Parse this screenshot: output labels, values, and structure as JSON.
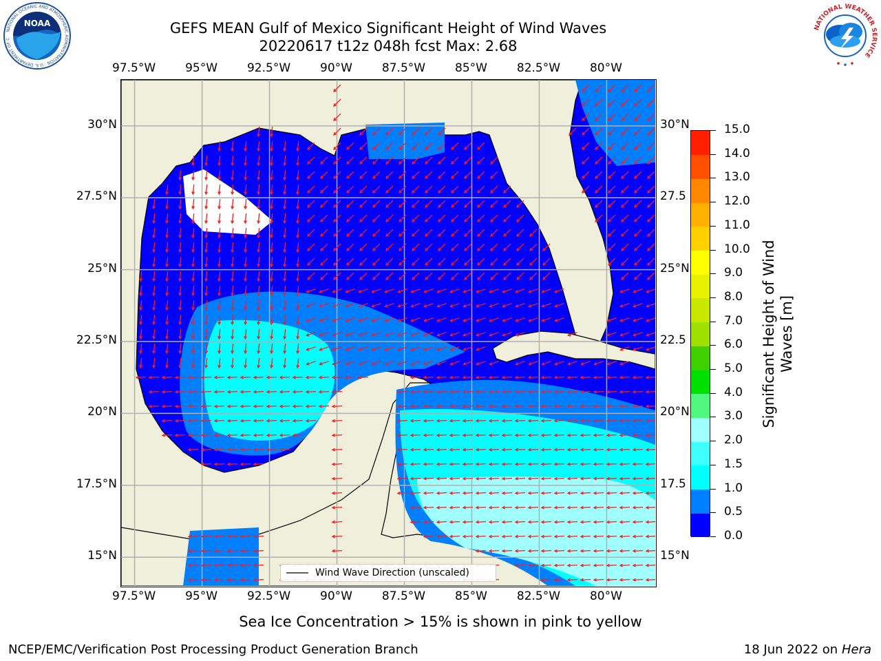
{
  "title": {
    "line1": "GEFS MEAN Gulf of Mexico Significant Height of Wind Waves",
    "line2": "20220617 t12z 048h fcst   Max: 2.68"
  },
  "logos": {
    "left": {
      "name": "noaa-logo",
      "text": "NOAA",
      "ring_text": "NATIONAL OCEANIC AND ATMOSPHERIC ADMINISTRATION · U.S. DEPARTMENT OF COMMERCE"
    },
    "right": {
      "name": "nws-logo",
      "ring_text": "NATIONAL WEATHER SERVICE"
    }
  },
  "map": {
    "lon_ticks": [
      "97.5°W",
      "95°W",
      "92.5°W",
      "90°W",
      "87.5°W",
      "85°W",
      "82.5°W",
      "80°W"
    ],
    "lon_values": [
      -97.5,
      -95,
      -92.5,
      -90,
      -87.5,
      -85,
      -82.5,
      -80
    ],
    "lat_ticks_left": [
      "30°N",
      "27.5°N",
      "25°N",
      "22.5°N",
      "20°N",
      "17.5°N",
      "15°N"
    ],
    "lat_ticks_right": [
      "30°N",
      "27.5",
      "25°N",
      "22.5",
      "20°N",
      "17.5",
      "15°N"
    ],
    "lat_values": [
      30,
      27.5,
      25,
      22.5,
      20,
      17.5,
      15
    ],
    "extent": {
      "lon_min": -98,
      "lon_max": -78.2,
      "lat_min": 14,
      "lat_max": 31.6
    },
    "land_color": "#efefdb",
    "legend_label": "Wind Wave Direction (unscaled)"
  },
  "colorbar": {
    "title_line1": "Significant Height of Wind",
    "title_line2": "Waves [m]",
    "levels": [
      "0.0",
      "0.5",
      "1.0",
      "1.5",
      "2.0",
      "3.0",
      "4.0",
      "5.0",
      "6.0",
      "7.0",
      "8.0",
      "9.0",
      "10.0",
      "11.0",
      "12.0",
      "13.0",
      "14.0",
      "15.0"
    ],
    "colors": [
      "#0000ff",
      "#0080ff",
      "#00ffff",
      "#40ffff",
      "#a0ffff",
      "#50f880",
      "#00e000",
      "#40d000",
      "#a0e000",
      "#c8e800",
      "#e8f000",
      "#ffff00",
      "#ffd000",
      "#ffb000",
      "#ff8800",
      "#ff5000",
      "#ff2000"
    ]
  },
  "notes": {
    "sea_ice": "Sea Ice Concentration > 15% is shown in pink to yellow"
  },
  "footer": {
    "left": "NCEP/EMC/Verification Post Processing Product Generation Branch",
    "date": "18 Jun 2022 on",
    "machine": "Hera"
  }
}
